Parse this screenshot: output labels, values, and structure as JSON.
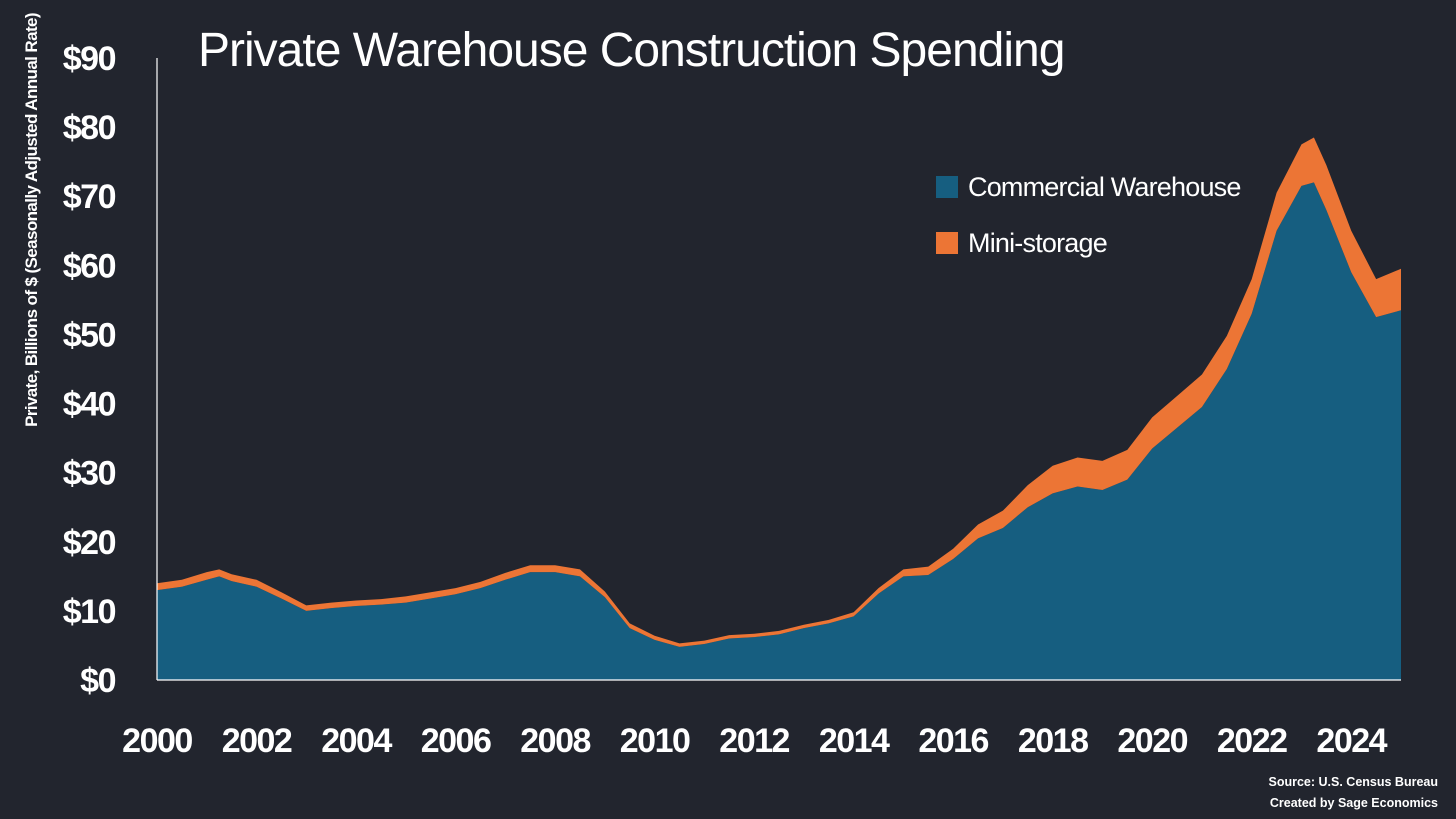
{
  "chart_data": {
    "type": "area",
    "stacked": true,
    "title": "Private Warehouse Construction Spending",
    "ylabel": "Private, Billions of $ (Seasonally Adjusted Annual Rate)",
    "xlabel": "",
    "ylim": [
      0,
      90
    ],
    "yticks": [
      "$0",
      "$10",
      "$20",
      "$30",
      "$40",
      "$50",
      "$60",
      "$70",
      "$80",
      "$90"
    ],
    "xlim": [
      2000,
      2025
    ],
    "xticks": [
      "2000",
      "2002",
      "2004",
      "2006",
      "2008",
      "2010",
      "2012",
      "2014",
      "2016",
      "2018",
      "2020",
      "2022",
      "2024"
    ],
    "grid": false,
    "legend_position": "top-right",
    "x": [
      2000.0,
      2000.5,
      2001.0,
      2001.25,
      2001.5,
      2002.0,
      2002.5,
      2003.0,
      2003.5,
      2004.0,
      2004.5,
      2005.0,
      2005.5,
      2006.0,
      2006.5,
      2007.0,
      2007.5,
      2008.0,
      2008.5,
      2009.0,
      2009.5,
      2010.0,
      2010.5,
      2011.0,
      2011.5,
      2012.0,
      2012.5,
      2013.0,
      2013.5,
      2014.0,
      2014.5,
      2015.0,
      2015.5,
      2016.0,
      2016.5,
      2017.0,
      2017.5,
      2018.0,
      2018.5,
      2019.0,
      2019.5,
      2020.0,
      2020.5,
      2021.0,
      2021.5,
      2022.0,
      2022.5,
      2023.0,
      2023.25,
      2023.5,
      2024.0,
      2024.5,
      2025.0
    ],
    "series": [
      {
        "name": "Commercial Warehouse",
        "color": "#165e80",
        "values": [
          13.0,
          13.5,
          14.5,
          15.0,
          14.3,
          13.5,
          11.8,
          10.0,
          10.4,
          10.7,
          10.9,
          11.2,
          11.8,
          12.4,
          13.3,
          14.5,
          15.6,
          15.6,
          15.0,
          12.0,
          7.5,
          5.8,
          4.8,
          5.2,
          6.0,
          6.2,
          6.6,
          7.5,
          8.2,
          9.2,
          12.5,
          15.0,
          15.2,
          17.5,
          20.5,
          22.0,
          25.0,
          27.0,
          28.0,
          27.5,
          29.0,
          33.5,
          36.5,
          39.5,
          45.0,
          53.0,
          65.0,
          71.5,
          72.0,
          68.0,
          59.0,
          52.5,
          53.5
        ]
      },
      {
        "name": "Mini-storage",
        "color": "#ec7535",
        "values": [
          1.0,
          1.0,
          1.1,
          1.0,
          1.0,
          1.0,
          0.9,
          0.8,
          0.8,
          0.8,
          0.8,
          0.9,
          0.9,
          0.9,
          0.9,
          1.0,
          1.0,
          1.0,
          1.0,
          0.8,
          0.7,
          0.6,
          0.5,
          0.5,
          0.5,
          0.5,
          0.5,
          0.5,
          0.5,
          0.6,
          0.8,
          1.0,
          1.2,
          1.5,
          2.0,
          2.5,
          3.2,
          4.0,
          4.2,
          4.2,
          4.3,
          4.5,
          4.6,
          4.7,
          4.8,
          5.0,
          5.5,
          6.0,
          6.5,
          6.5,
          6.0,
          5.5,
          6.0
        ]
      }
    ],
    "annotations": [
      "Source: U.S. Census Bureau",
      "Created by Sage Economics"
    ]
  }
}
